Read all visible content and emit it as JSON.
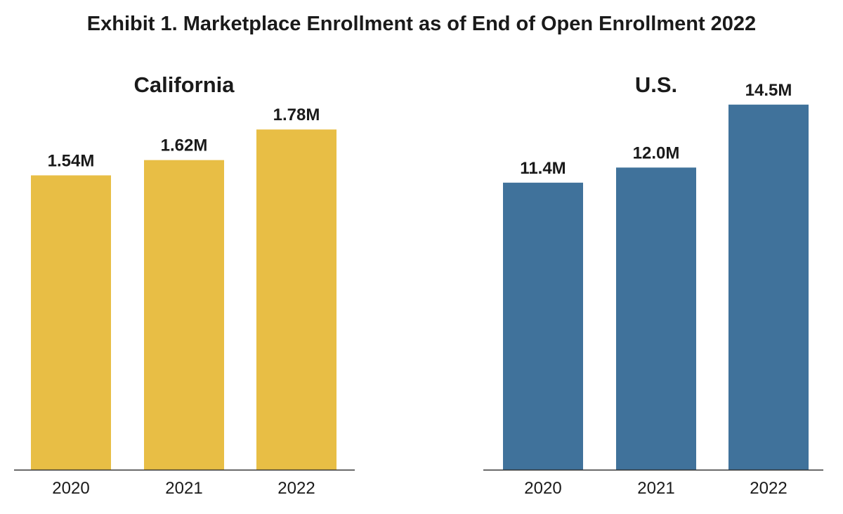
{
  "title": "Exhibit 1. Marketplace Enrollment as of End of Open Enrollment 2022",
  "colors": {
    "california": "#E8BE45",
    "us": "#40729B"
  },
  "chart_data": [
    {
      "type": "bar",
      "title": "California",
      "categories": [
        "2020",
        "2021",
        "2022"
      ],
      "values": [
        1.54,
        1.62,
        1.78
      ],
      "data_labels": [
        "1.54M",
        "1.62M",
        "1.78M"
      ],
      "unit": "M",
      "ylim": [
        0,
        2.2
      ],
      "grid": false,
      "color": "#E8BE45"
    },
    {
      "type": "bar",
      "title": "U.S.",
      "categories": [
        "2020",
        "2021",
        "2022"
      ],
      "values": [
        11.4,
        12.0,
        14.5
      ],
      "data_labels": [
        "11.4M",
        "12.0M",
        "14.5M"
      ],
      "unit": "M",
      "ylim": [
        0,
        16.7
      ],
      "grid": false,
      "color": "#40729B"
    }
  ]
}
